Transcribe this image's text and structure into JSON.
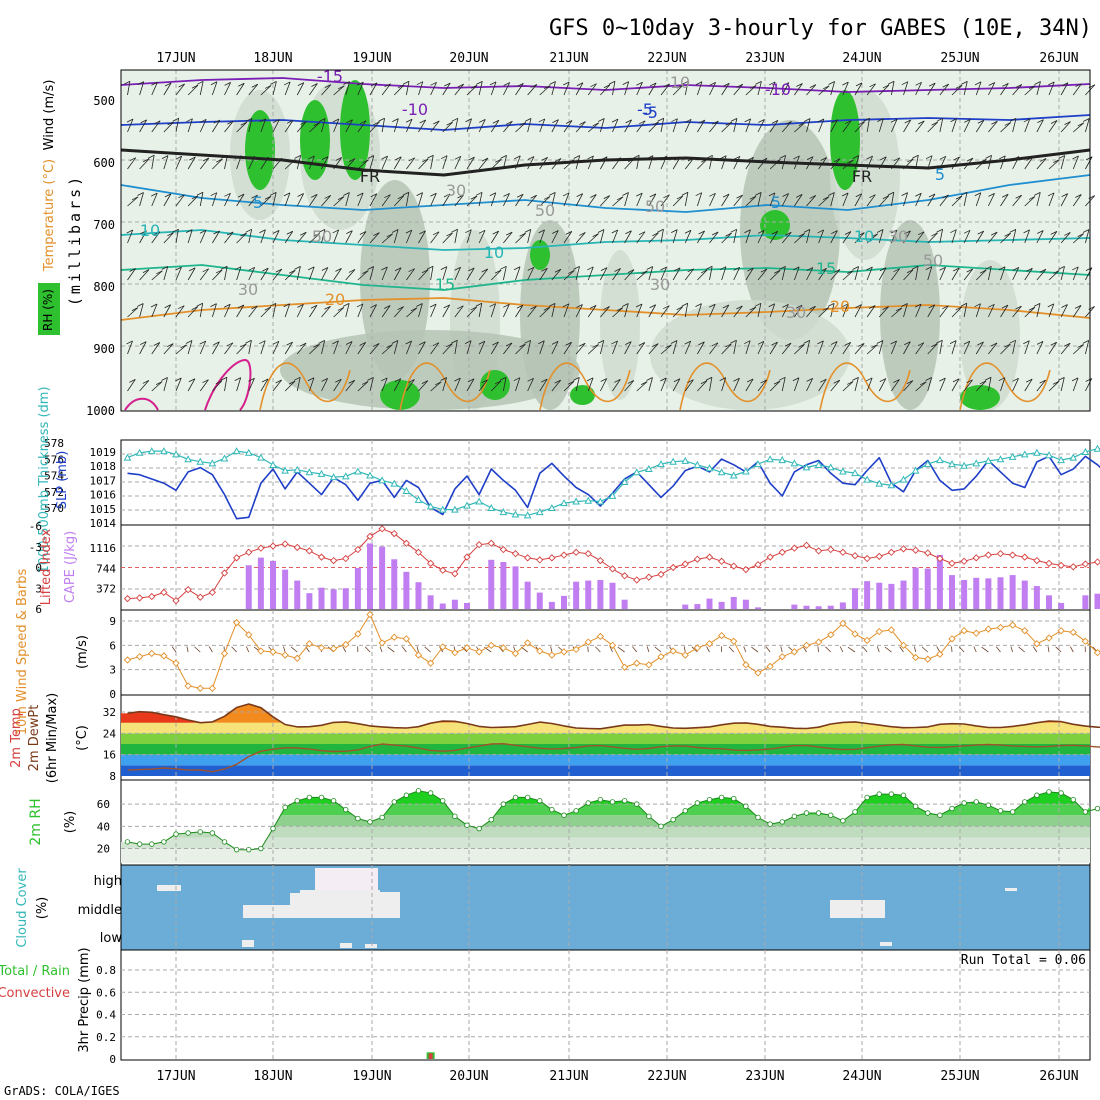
{
  "title": "GFS 0~10day 3-hourly for GABES (10E, 34N)",
  "footer": "GrADS: COLA/IGES",
  "dates": [
    "17JUN",
    "18JUN",
    "19JUN",
    "20JUN",
    "21JUN",
    "22JUN",
    "23JUN",
    "24JUN",
    "25JUN",
    "26JUN"
  ],
  "colors": {
    "grid": "#aaaaaa",
    "rh_light": "#e3efe3",
    "rh_mid": "#cfdccf",
    "rh_dark": "#b5c4b5",
    "rh_green": "#2fc02f",
    "slp": "#1f3fc8",
    "thickness": "#33b8b8",
    "lifted": "#d64040",
    "cape": "#c07ef0",
    "wind_speed": "#e3902a",
    "barb": "#6b3f26",
    "temp_fill": "#f28a1d",
    "temp_line": "#7a3a1a",
    "cloud_bg": "#6badd6",
    "rh_line": "#2fc02f"
  },
  "panels": {
    "upper": {
      "ylabel": "(millibars)",
      "legend_wind": "Wind (m/s)",
      "legend_temp": "Temperature (°C)",
      "legend_rh": "RH (%)",
      "yticks": [
        "500",
        "600",
        "700",
        "800",
        "900",
        "1000"
      ],
      "labels": [
        "-15",
        "-10",
        "-5",
        "FR",
        "5",
        "10",
        "15",
        "20",
        "30",
        "50",
        "-10",
        "-5",
        "FR",
        "5",
        "10",
        "15",
        "20",
        "10",
        "30",
        "30",
        "50",
        "50",
        "10",
        "5",
        "30",
        "50",
        "30"
      ]
    },
    "pressure": {
      "label_thick": "1000-500mb Thickness (dm)",
      "label_slp": "SLP (mb)",
      "thick_ticks": [
        "578",
        "576",
        "574",
        "572",
        "570"
      ],
      "slp_ticks": [
        "1019",
        "1018",
        "1017",
        "1016",
        "1015",
        "1014"
      ]
    },
    "cape": {
      "label_li": "Lifted Index",
      "label_cape": "CAPE (J/kg)",
      "li_ticks": [
        "-6",
        "-3",
        "0",
        "3",
        "6"
      ],
      "cape_ticks": [
        "1116",
        "744",
        "372"
      ]
    },
    "wind10": {
      "label": "10m Wind Speed & Barbs",
      "unit": "(m/s)",
      "yticks": [
        "9",
        "6",
        "3",
        "0"
      ]
    },
    "temp2m": {
      "label1": "2m Temp",
      "label2": "2m DewPt",
      "label3": "(6hr Min/Max)",
      "unit": "(°C)",
      "yticks": [
        "32",
        "24",
        "16",
        "8"
      ]
    },
    "rh2m": {
      "label": "2m RH",
      "unit": "(%)",
      "yticks": [
        "60",
        "40",
        "20"
      ]
    },
    "cloud": {
      "label": "Cloud Cover",
      "unit": "(%)",
      "levels": [
        "high",
        "middle",
        "low"
      ]
    },
    "precip": {
      "label_total": "Total / Rain",
      "label_conv": "Convective",
      "ylabel": "3hr Precip (mm)",
      "yticks": [
        "0.8",
        "0.6",
        "0.4",
        "0.2",
        "0"
      ],
      "run_total": "Run Total = 0.06"
    }
  },
  "chart_data": {
    "type": "line",
    "x_unit": "hours from 16JUN 12Z, 3-hourly",
    "slp_mb": [
      1017.5,
      1017.4,
      1017.1,
      1016.8,
      1016.3,
      1017.6,
      1017.9,
      1017.4,
      1016.0,
      1014.3,
      1014.4,
      1016.8,
      1017.8,
      1016.4,
      1017.6,
      1016.8,
      1016.0,
      1017.2,
      1016.7,
      1015.6,
      1016.8,
      1017.0,
      1015.8,
      1017.0,
      1016.5,
      1015.1,
      1014.6,
      1016.4,
      1017.3,
      1016.0,
      1017.8,
      1017.0,
      1016.3,
      1015.1,
      1017.5,
      1018.2,
      1017.3,
      1016.5,
      1016.0,
      1015.2,
      1016.1,
      1017.1,
      1017.6,
      1016.7,
      1015.8,
      1016.6,
      1017.7,
      1018.0,
      1017.6,
      1018.5,
      1018.1,
      1017.6,
      1018.3,
      1016.8,
      1015.9,
      1017.6,
      1018.1,
      1018.4,
      1017.5,
      1016.8,
      1016.7,
      1017.7,
      1018.6,
      1016.8,
      1016.2,
      1017.7,
      1018.4,
      1017.0,
      1016.3,
      1016.4,
      1017.3,
      1018.4,
      1017.6,
      1016.8,
      1016.5,
      1018.3,
      1018.7,
      1017.4,
      1017.8,
      1018.7,
      1018.1,
      1017.3,
      1017.0,
      1016.2,
      1017.1
    ],
    "thickness_dm": [
      576.2,
      576.8,
      577.0,
      577.0,
      576.6,
      576.0,
      575.7,
      575.5,
      576.1,
      577.0,
      576.8,
      576.2,
      575.3,
      574.6,
      574.7,
      574.4,
      574.2,
      573.8,
      573.9,
      574.5,
      574.0,
      573.4,
      573.0,
      572.1,
      571.0,
      570.2,
      569.8,
      569.8,
      570.3,
      570.8,
      570.0,
      569.5,
      569.2,
      569.1,
      569.5,
      570.0,
      570.6,
      570.8,
      570.9,
      570.8,
      571.5,
      573.2,
      574.4,
      574.8,
      575.4,
      575.7,
      575.8,
      575.3,
      574.9,
      574.4,
      574.0,
      574.5,
      575.4,
      576.0,
      575.9,
      575.5,
      575.0,
      575.3,
      575.0,
      574.5,
      574.3,
      573.5,
      573.0,
      572.8,
      573.5,
      574.6,
      575.4,
      575.9,
      575.4,
      575.2,
      575.5,
      575.8,
      576.0,
      576.3,
      576.6,
      576.8,
      576.5,
      575.9,
      576.2,
      576.9,
      577.3,
      577.3,
      577.0,
      576.8,
      576.4
    ],
    "lifted_index": [
      4.5,
      4.4,
      4.2,
      3.6,
      4.8,
      3.2,
      4.3,
      3.6,
      0.8,
      -1.4,
      -2.2,
      -2.8,
      -3.1,
      -3.4,
      -2.9,
      -2.4,
      -1.5,
      -1.0,
      -1.3,
      -2.6,
      -4.5,
      -5.6,
      -4.9,
      -3.5,
      -2.2,
      -0.6,
      0.4,
      0.9,
      -1.5,
      -3.3,
      -3.5,
      -2.6,
      -2.0,
      -1.4,
      -1.1,
      -1.4,
      -1.8,
      -2.2,
      -2.0,
      -1.0,
      0.2,
      1.2,
      1.8,
      1.4,
      1.0,
      0.0,
      -0.5,
      -1.2,
      -1.5,
      -0.9,
      -0.2,
      0.3,
      -0.4,
      -1.5,
      -2.2,
      -2.8,
      -3.2,
      -2.4,
      -2.6,
      -2.2,
      -1.7,
      -1.3,
      -1.6,
      -2.2,
      -2.7,
      -2.5,
      -2.1,
      -1.3,
      -0.6,
      -0.9,
      -1.4,
      -1.8,
      -2.0,
      -1.8,
      -1.5,
      -1.0,
      -0.6,
      -0.3,
      -0.1,
      -0.5,
      -0.8,
      -0.7,
      -0.2,
      0.8,
      2.3
    ],
    "cape_jkg": [
      0,
      0,
      0,
      0,
      0,
      0,
      0,
      0,
      0,
      0,
      800,
      940,
      880,
      720,
      520,
      290,
      390,
      360,
      380,
      750,
      1200,
      1140,
      910,
      680,
      490,
      250,
      100,
      170,
      110,
      0,
      900,
      860,
      780,
      500,
      300,
      130,
      240,
      500,
      520,
      530,
      480,
      170,
      0,
      0,
      0,
      0,
      80,
      90,
      190,
      130,
      220,
      170,
      30,
      0,
      0,
      80,
      60,
      50,
      60,
      120,
      380,
      510,
      480,
      460,
      520,
      760,
      740,
      990,
      620,
      530,
      570,
      560,
      580,
      620,
      520,
      420,
      250,
      110,
      0,
      250,
      280,
      110,
      0,
      0,
      0
    ],
    "wind10_ms": [
      4.2,
      4.6,
      5.0,
      4.7,
      3.8,
      1.0,
      0.7,
      0.7,
      5.0,
      8.8,
      7.3,
      5.3,
      5.2,
      4.8,
      4.4,
      6.2,
      5.7,
      5.6,
      6.1,
      7.4,
      9.8,
      6.3,
      7.0,
      6.8,
      4.8,
      3.8,
      5.8,
      5.1,
      5.7,
      5.2,
      6.0,
      5.7,
      5.0,
      6.3,
      5.3,
      4.8,
      5.2,
      5.5,
      6.4,
      7.1,
      6.0,
      3.3,
      3.8,
      3.6,
      4.6,
      5.3,
      4.8,
      5.7,
      6.2,
      7.2,
      6.5,
      3.6,
      2.6,
      3.4,
      4.6,
      5.2,
      6.0,
      6.4,
      7.3,
      8.7,
      7.4,
      6.6,
      7.7,
      7.9,
      6.0,
      4.5,
      4.3,
      4.9,
      6.8,
      7.8,
      7.5,
      8.0,
      8.2,
      8.5,
      7.8,
      6.2,
      6.9,
      7.8,
      7.6,
      6.5,
      5.1,
      6.1,
      6.4,
      5.2,
      4.3
    ],
    "temp2m_c": [
      31.5,
      32.1,
      31.9,
      31.0,
      30.2,
      29.0,
      28.0,
      28.3,
      30.4,
      33.7,
      35.0,
      33.6,
      30.2,
      27.3,
      26.4,
      26.5,
      27.0,
      28.1,
      28.3,
      27.6,
      26.8,
      26.4,
      26.1,
      26.0,
      26.5,
      27.8,
      28.6,
      28.5,
      27.7,
      26.6,
      26.2,
      26.3,
      26.5,
      27.3,
      28.2,
      27.7,
      26.8,
      26.0,
      25.8,
      25.7,
      26.4,
      27.1,
      27.1,
      27.3,
      26.6,
      26.0,
      25.9,
      26.1,
      26.4,
      27.2,
      27.8,
      27.9,
      27.4,
      26.6,
      26.3,
      25.9,
      25.8,
      26.3,
      27.5,
      28.1,
      28.3,
      27.7,
      27.1,
      26.5,
      26.1,
      26.2,
      26.4,
      27.4,
      27.6,
      27.5,
      26.8,
      26.2,
      26.2,
      26.6,
      27.2,
      28.0,
      28.6,
      28.4,
      27.4,
      26.7,
      26.3,
      26.2,
      26.1,
      25.8,
      26.0
    ],
    "dewpt2m_c": [
      10.2,
      10.4,
      10.6,
      11.0,
      10.7,
      10.2,
      10.3,
      9.6,
      10.6,
      12.4,
      15.3,
      17.3,
      18.0,
      18.6,
      18.5,
      18.1,
      17.5,
      17.2,
      17.3,
      17.8,
      19.1,
      20.0,
      19.6,
      19.2,
      18.5,
      17.6,
      17.3,
      17.6,
      18.5,
      19.2,
      20.0,
      20.1,
      19.5,
      19.0,
      18.4,
      18.1,
      18.3,
      18.7,
      19.3,
      19.4,
      18.9,
      18.4,
      18.0,
      18.3,
      19.0,
      19.3,
      19.2,
      18.7,
      18.3,
      18.2,
      17.7,
      17.6,
      17.8,
      18.1,
      18.8,
      19.4,
      19.4,
      18.9,
      18.3,
      17.9,
      18.0,
      18.6,
      19.2,
      19.7,
      19.8,
      19.3,
      18.8,
      18.7,
      19.0,
      19.3,
      19.6,
      19.8,
      19.6,
      19.3,
      19.1,
      18.9,
      19.1,
      19.4,
      19.5,
      19.3,
      18.9,
      18.6,
      18.2,
      17.7,
      17.3
    ],
    "rh2m_pct": [
      26,
      24,
      24,
      26,
      33,
      34,
      35,
      34,
      26,
      19,
      19,
      20,
      38,
      57,
      63,
      66,
      66,
      63,
      55,
      47,
      44,
      48,
      62,
      68,
      72,
      70,
      63,
      49,
      41,
      38,
      46,
      60,
      66,
      66,
      63,
      55,
      50,
      54,
      61,
      64,
      62,
      63,
      60,
      49,
      40,
      46,
      54,
      61,
      64,
      66,
      65,
      58,
      48,
      42,
      44,
      49,
      52,
      52,
      50,
      45,
      53,
      66,
      69,
      69,
      68,
      58,
      52,
      50,
      56,
      61,
      62,
      59,
      54,
      53,
      62,
      68,
      71,
      70,
      64,
      53,
      56,
      58,
      59,
      58,
      58
    ],
    "cloud_high": [
      [
        0,
        0
      ],
      [
        0,
        0
      ],
      [
        0,
        0
      ],
      [
        4,
        12
      ],
      [
        6,
        10
      ],
      [
        0,
        0
      ]
    ],
    "precip_mm": [
      0,
      0,
      0,
      0,
      0,
      0,
      0,
      0,
      0,
      0,
      0,
      0,
      0,
      0,
      0,
      0,
      0,
      0,
      0,
      0,
      0,
      0,
      0,
      0,
      0,
      0.06,
      0,
      0,
      0,
      0,
      0,
      0,
      0,
      0,
      0,
      0,
      0,
      0,
      0,
      0,
      0,
      0,
      0,
      0,
      0,
      0,
      0,
      0,
      0,
      0,
      0,
      0,
      0,
      0,
      0,
      0,
      0,
      0,
      0,
      0,
      0,
      0,
      0,
      0,
      0,
      0,
      0,
      0,
      0,
      0,
      0,
      0,
      0,
      0,
      0,
      0,
      0,
      0,
      0,
      0,
      0,
      0,
      0,
      0,
      0
    ],
    "run_total_mm": 0.06
  }
}
